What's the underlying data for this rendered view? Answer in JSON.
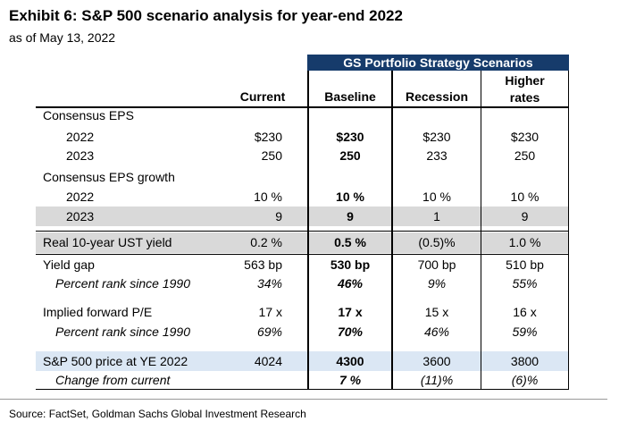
{
  "title": "Exhibit 6: S&P 500 scenario analysis for year-end 2022",
  "subtitle": "as of May 13, 2022",
  "group_header": "GS Portfolio Strategy Scenarios",
  "columns": {
    "current": "Current",
    "baseline": "Baseline",
    "recession": "Recession",
    "higher_rates_line1": "Higher",
    "higher_rates_line2": "rates"
  },
  "rows": [
    {
      "label": "Consensus EPS",
      "current": "",
      "baseline": "",
      "recession": "",
      "higher": ""
    },
    {
      "label": "2022",
      "current": "$230",
      "baseline": "$230",
      "recession": "$230",
      "higher": "$230"
    },
    {
      "label": "2023",
      "current": "250",
      "baseline": "250",
      "recession": "233",
      "higher": "250"
    },
    {
      "label": "Consensus EPS growth",
      "current": "",
      "baseline": "",
      "recession": "",
      "higher": ""
    },
    {
      "label": "2022",
      "current": "10 %",
      "baseline": "10 %",
      "recession": "10 %",
      "higher": "10 %"
    },
    {
      "label": "2023",
      "current": "9",
      "baseline": "9",
      "recession": "1",
      "higher": "9"
    },
    {
      "label": "Real 10-year UST yield",
      "current": "0.2 %",
      "baseline": "0.5 %",
      "recession": "(0.5)%",
      "higher": "1.0 %"
    },
    {
      "label": "Yield gap",
      "current": "563 bp",
      "baseline": "530 bp",
      "recession": "700 bp",
      "higher": "510 bp"
    },
    {
      "label": "Percent rank since 1990",
      "current": "34%",
      "baseline": "46%",
      "recession": "9%",
      "higher": "55%"
    },
    {
      "label": "Implied forward P/E",
      "current": "17 x",
      "baseline": "17 x",
      "recession": "15 x",
      "higher": "16 x"
    },
    {
      "label": "Percent rank since 1990",
      "current": "69%",
      "baseline": "70%",
      "recession": "46%",
      "higher": "59%"
    },
    {
      "label": "S&P 500 price at YE 2022",
      "current": "4024",
      "baseline": "4300",
      "recession": "3600",
      "higher": "3800"
    },
    {
      "label": "Change from current",
      "current": "",
      "baseline": "7 %",
      "recession": "(11)%",
      "higher": "(6)%"
    }
  ],
  "source": "Source: FactSet, Goldman Sachs Global Investment Research"
}
